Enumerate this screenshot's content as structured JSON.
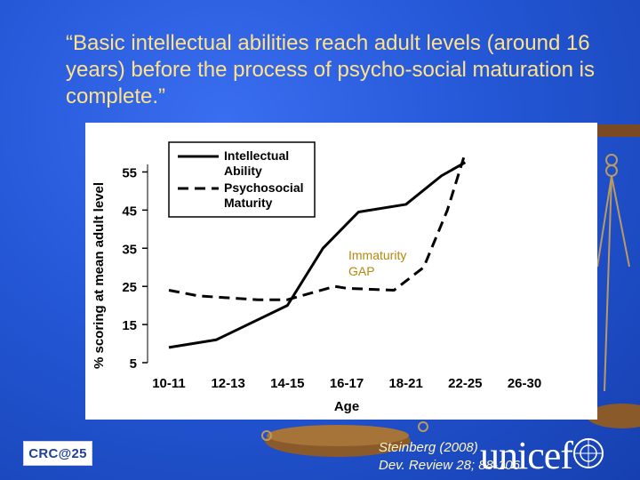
{
  "slide": {
    "quote": "“Basic intellectual abilities reach adult levels (around 16 years) before the process of psycho-social maturation is complete.”",
    "annotation_line1": "Immaturity",
    "annotation_line2": "GAP",
    "citation_line1": "Steinberg (2008)",
    "citation_line2": "Dev. Review 28; 88-106",
    "logo_left": "CRC@25",
    "logo_right": "unicef"
  },
  "chart_data": {
    "type": "line",
    "categories": [
      "10-11",
      "12-13",
      "14-15",
      "16-17",
      "18-21",
      "22-25",
      "26-30"
    ],
    "ylabel": "% scoring at mean adult level",
    "xlabel": "Age",
    "yticks": [
      5,
      15,
      25,
      35,
      45,
      55
    ],
    "ylim": [
      5,
      60
    ],
    "legend_position": "top-left",
    "series": [
      {
        "name": "Intellectual Ability",
        "style": "solid",
        "color": "#000000",
        "x": [
          1,
          1.8,
          3,
          3.6,
          4.2,
          5,
          5.6,
          6
        ],
        "values": [
          9,
          11,
          20,
          35,
          44.5,
          46.5,
          54,
          57.5
        ]
      },
      {
        "name": "Psychosocial Maturity",
        "style": "dashed",
        "color": "#000000",
        "x": [
          1,
          1.5,
          2.5,
          3,
          3.8,
          4,
          4.8,
          5.3,
          5.7,
          6
        ],
        "values": [
          24,
          22.5,
          21.5,
          21.5,
          25,
          24.5,
          24,
          30,
          45,
          60
        ]
      }
    ]
  }
}
